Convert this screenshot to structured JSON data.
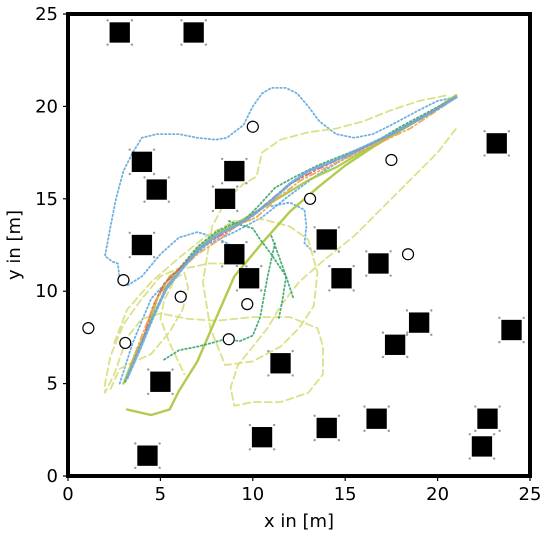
{
  "chart_data": {
    "type": "scatter",
    "xlabel": "x in [m]",
    "ylabel": "y in [m]",
    "xlim": [
      0,
      25
    ],
    "ylim": [
      0,
      25
    ],
    "xticks": [
      "0",
      "5",
      "10",
      "15",
      "20",
      "25"
    ],
    "yticks": [
      "0",
      "5",
      "10",
      "15",
      "20",
      "25"
    ],
    "grid": false,
    "obstacles": [
      [
        2.8,
        24.0
      ],
      [
        6.8,
        24.0
      ],
      [
        23.2,
        18.0
      ],
      [
        4.0,
        17.0
      ],
      [
        9.0,
        16.5
      ],
      [
        4.8,
        15.5
      ],
      [
        8.5,
        15.0
      ],
      [
        4.0,
        12.5
      ],
      [
        14.0,
        12.8
      ],
      [
        9.0,
        12.0
      ],
      [
        16.8,
        11.5
      ],
      [
        9.8,
        10.7
      ],
      [
        14.8,
        10.7
      ],
      [
        19.0,
        8.3
      ],
      [
        24.0,
        7.9
      ],
      [
        17.7,
        7.1
      ],
      [
        5.0,
        5.1
      ],
      [
        11.5,
        6.1
      ],
      [
        16.7,
        3.1
      ],
      [
        14.0,
        2.6
      ],
      [
        22.7,
        3.1
      ],
      [
        10.5,
        2.1
      ],
      [
        22.4,
        1.6
      ],
      [
        4.3,
        1.1
      ]
    ],
    "targets": [
      [
        10.0,
        18.9
      ],
      [
        17.5,
        17.1
      ],
      [
        13.1,
        15.0
      ],
      [
        18.4,
        12.0
      ],
      [
        3.0,
        10.6
      ],
      [
        6.1,
        9.7
      ],
      [
        9.7,
        9.3
      ],
      [
        1.1,
        8.0
      ],
      [
        3.1,
        7.2
      ],
      [
        8.7,
        7.4
      ]
    ],
    "colors": {
      "frame": "#000000",
      "obstacle": "#000000",
      "obstacle_marker": "#9a9a9a",
      "target_fill": "#ffffff",
      "target_edge": "#000000"
    },
    "series": [
      {
        "color": "#5fa8e0",
        "style": "dotted",
        "x": [
          2.8,
          3.5,
          4.5,
          6.0,
          7.5,
          9.0,
          10.5,
          12.0,
          13.5,
          15.0,
          16.5,
          18.0,
          19.5,
          21.0
        ],
        "y": [
          5.0,
          7.2,
          9.6,
          11.2,
          12.5,
          13.2,
          14.0,
          15.2,
          16.3,
          17.2,
          18.0,
          18.8,
          19.6,
          20.5
        ]
      },
      {
        "color": "#5fa8e0",
        "style": "dotted",
        "x": [
          8.8,
          8.0,
          7.0,
          6.0,
          5.0,
          4.0,
          3.2,
          2.8,
          2.7,
          2.4,
          2.0,
          2.3,
          2.6,
          3.0,
          3.5,
          4.0,
          4.8,
          6.0,
          7.0,
          8.0,
          8.6,
          9.5,
          10.0,
          10.5,
          11.0,
          11.8,
          12.4,
          13.0,
          13.6,
          14.5,
          15.5,
          16.5,
          17.5,
          19.0,
          20.0,
          21.0
        ],
        "y": [
          12.5,
          12.9,
          13.2,
          12.9,
          12.0,
          10.8,
          10.3,
          10.6,
          11.5,
          11.6,
          11.9,
          13.5,
          15.0,
          16.5,
          17.5,
          18.3,
          18.5,
          18.5,
          18.3,
          18.2,
          18.3,
          19.0,
          20.0,
          20.7,
          21.0,
          21.0,
          20.7,
          20.0,
          19.2,
          18.5,
          18.3,
          18.5,
          19.0,
          19.8,
          20.3,
          20.5
        ]
      },
      {
        "color": "#5fa8e0",
        "style": "dotted",
        "x": [
          11.0,
          12.0,
          12.8,
          12.9,
          12.8,
          13.2
        ],
        "y": [
          14.6,
          14.8,
          14.4,
          13.5,
          12.6,
          12.2
        ]
      },
      {
        "color": "#d9dd7a",
        "style": "dashed",
        "x": [
          8.6,
          7.6,
          6.7,
          5.9,
          5.0,
          4.0,
          3.0,
          2.3,
          2.0,
          2.0,
          2.5,
          3.2,
          4.0,
          5.0,
          6.5,
          8.0,
          10.0,
          12.0,
          13.5,
          13.8,
          13.8,
          13.0,
          11.5,
          10.0,
          9.0,
          8.8,
          9.2,
          10.0,
          10.8,
          11.5,
          12.5,
          14.0,
          15.5,
          17.0,
          18.5,
          20.0,
          21.0
        ],
        "y": [
          11.5,
          11.5,
          11.3,
          11.2,
          10.8,
          9.6,
          8.2,
          6.5,
          5.0,
          4.5,
          5.5,
          7.5,
          8.5,
          8.8,
          8.5,
          8.4,
          8.6,
          8.6,
          8.0,
          7.0,
          5.5,
          4.5,
          4.0,
          4.0,
          3.8,
          4.8,
          6.0,
          7.0,
          8.0,
          9.2,
          10.5,
          11.8,
          13.0,
          14.5,
          16.0,
          17.5,
          18.8
        ]
      },
      {
        "color": "#d9dd7a",
        "style": "dashed",
        "x": [
          2.5,
          3.2,
          4.5,
          6.0,
          7.5,
          9.0,
          10.5,
          12.0,
          13.0,
          13.5,
          13.3,
          12.5,
          11.5,
          10.0,
          8.5,
          7.7,
          7.3,
          7.8,
          8.6,
          9.5,
          10.2,
          10.5,
          11.5,
          13.0,
          14.5,
          16.0,
          17.5,
          19.0,
          20.5
        ],
        "y": [
          7.2,
          9.0,
          10.5,
          11.8,
          13.0,
          13.8,
          13.9,
          13.5,
          12.8,
          11.0,
          9.2,
          8.0,
          7.0,
          6.2,
          6.0,
          8.0,
          10.5,
          13.5,
          15.0,
          15.8,
          16.2,
          17.5,
          18.2,
          18.6,
          18.8,
          19.2,
          19.8,
          20.3,
          20.6
        ]
      },
      {
        "color": "#d9dd7a",
        "style": "dashed",
        "x": [
          2.3,
          2.8,
          3.6,
          4.5,
          5.5,
          6.2,
          6.5,
          6.3,
          5.8,
          5.2,
          5.0,
          5.5,
          6.3
        ],
        "y": [
          4.7,
          5.8,
          6.2,
          6.6,
          7.8,
          9.0,
          10.2,
          11.0,
          10.7,
          9.5,
          8.5,
          7.2,
          5.5
        ]
      },
      {
        "color": "#a8c63a",
        "style": "solid",
        "width": 2.4,
        "x": [
          3.2,
          4.5,
          5.5,
          6.0,
          7.0,
          8.0,
          9.0,
          10.5,
          12.0,
          13.5,
          15.0,
          16.5,
          18.0,
          19.5,
          21.0
        ],
        "y": [
          3.6,
          3.3,
          3.6,
          4.6,
          6.2,
          8.5,
          10.8,
          12.6,
          14.3,
          15.6,
          16.8,
          17.8,
          18.7,
          19.6,
          20.6
        ]
      },
      {
        "color": "#a8c63a",
        "style": "solid",
        "width": 2.2,
        "x": [
          3.0,
          3.6,
          4.3,
          4.9,
          5.5,
          6.2,
          7.0,
          8.0,
          9.0,
          10.0,
          11.0,
          12.0,
          13.0,
          14.5,
          16.0,
          17.5,
          19.0,
          20.5,
          21.0
        ],
        "y": [
          5.0,
          6.5,
          8.0,
          9.8,
          10.8,
          11.3,
          12.3,
          13.1,
          13.6,
          14.2,
          14.8,
          15.4,
          16.0,
          16.7,
          17.6,
          18.4,
          19.3,
          20.2,
          20.5
        ]
      },
      {
        "color": "#3aa66a",
        "style": "dotted",
        "x": [
          3.1,
          3.8,
          4.6,
          5.3,
          6.0,
          7.0,
          8.0,
          8.8,
          9.5,
          10.3,
          11.2,
          12.3,
          13.5,
          15.0,
          16.5,
          18.0,
          19.5,
          21.0
        ],
        "y": [
          5.1,
          6.8,
          8.6,
          10.2,
          11.2,
          12.4,
          13.2,
          13.6,
          13.8,
          14.6,
          15.6,
          16.2,
          16.8,
          17.4,
          18.0,
          18.9,
          19.7,
          20.5
        ]
      },
      {
        "color": "#3aa66a",
        "style": "dotted",
        "x": [
          8.7,
          9.3,
          10.0,
          10.4,
          11.0,
          11.8,
          12.2
        ],
        "y": [
          13.8,
          13.6,
          13.4,
          12.8,
          12.0,
          10.8,
          9.6
        ]
      },
      {
        "color": "#3aa66a",
        "style": "dotted",
        "x": [
          5.2,
          6.0,
          7.0,
          7.8,
          8.5,
          9.3,
          10.0,
          10.4,
          10.8,
          11.2
        ],
        "y": [
          6.3,
          6.8,
          7.0,
          7.2,
          7.4,
          7.3,
          7.6,
          8.6,
          10.8,
          12.6
        ]
      },
      {
        "color": "#3aa66a",
        "style": "dotted",
        "x": [
          11.0,
          11.3,
          11.8,
          11.6,
          11.4
        ],
        "y": [
          13.0,
          12.2,
          10.8,
          9.5,
          8.5
        ]
      },
      {
        "color": "#e15c5c",
        "style": "dashdot",
        "x": [
          4.0,
          4.6,
          5.2,
          6.0,
          7.2,
          8.4,
          9.6,
          10.8,
          12.0,
          13.5,
          15.0,
          16.5,
          18.0,
          19.5,
          21.0
        ],
        "y": [
          7.2,
          9.2,
          10.4,
          11.2,
          12.4,
          13.1,
          13.8,
          14.8,
          15.8,
          16.6,
          17.3,
          18.0,
          18.8,
          19.6,
          20.5
        ]
      },
      {
        "color": "#f0a050",
        "style": "dashdot",
        "x": [
          3.4,
          4.0,
          4.8,
          5.8,
          7.0,
          8.2,
          9.2,
          10.2,
          11.3,
          12.6,
          14.0,
          15.5,
          17.0,
          18.5,
          20.0,
          21.0
        ],
        "y": [
          6.0,
          7.6,
          9.6,
          10.9,
          12.0,
          12.8,
          13.6,
          14.0,
          15.0,
          16.0,
          16.7,
          17.4,
          18.1,
          18.8,
          19.8,
          20.5
        ]
      },
      {
        "color": "#6fa8d8",
        "style": "dotted",
        "width": 3.0,
        "x": [
          3.2,
          3.9,
          4.6,
          5.3,
          6.0,
          7.0,
          8.0,
          9.0,
          10.0,
          11.0,
          12.0,
          13.0,
          14.5,
          16.0,
          17.5,
          19.0,
          20.2,
          21.0
        ],
        "y": [
          5.3,
          6.9,
          8.6,
          10.1,
          11.0,
          12.2,
          13.0,
          13.5,
          14.1,
          14.9,
          15.8,
          16.5,
          17.1,
          17.8,
          18.5,
          19.3,
          20.0,
          20.5
        ]
      }
    ]
  }
}
